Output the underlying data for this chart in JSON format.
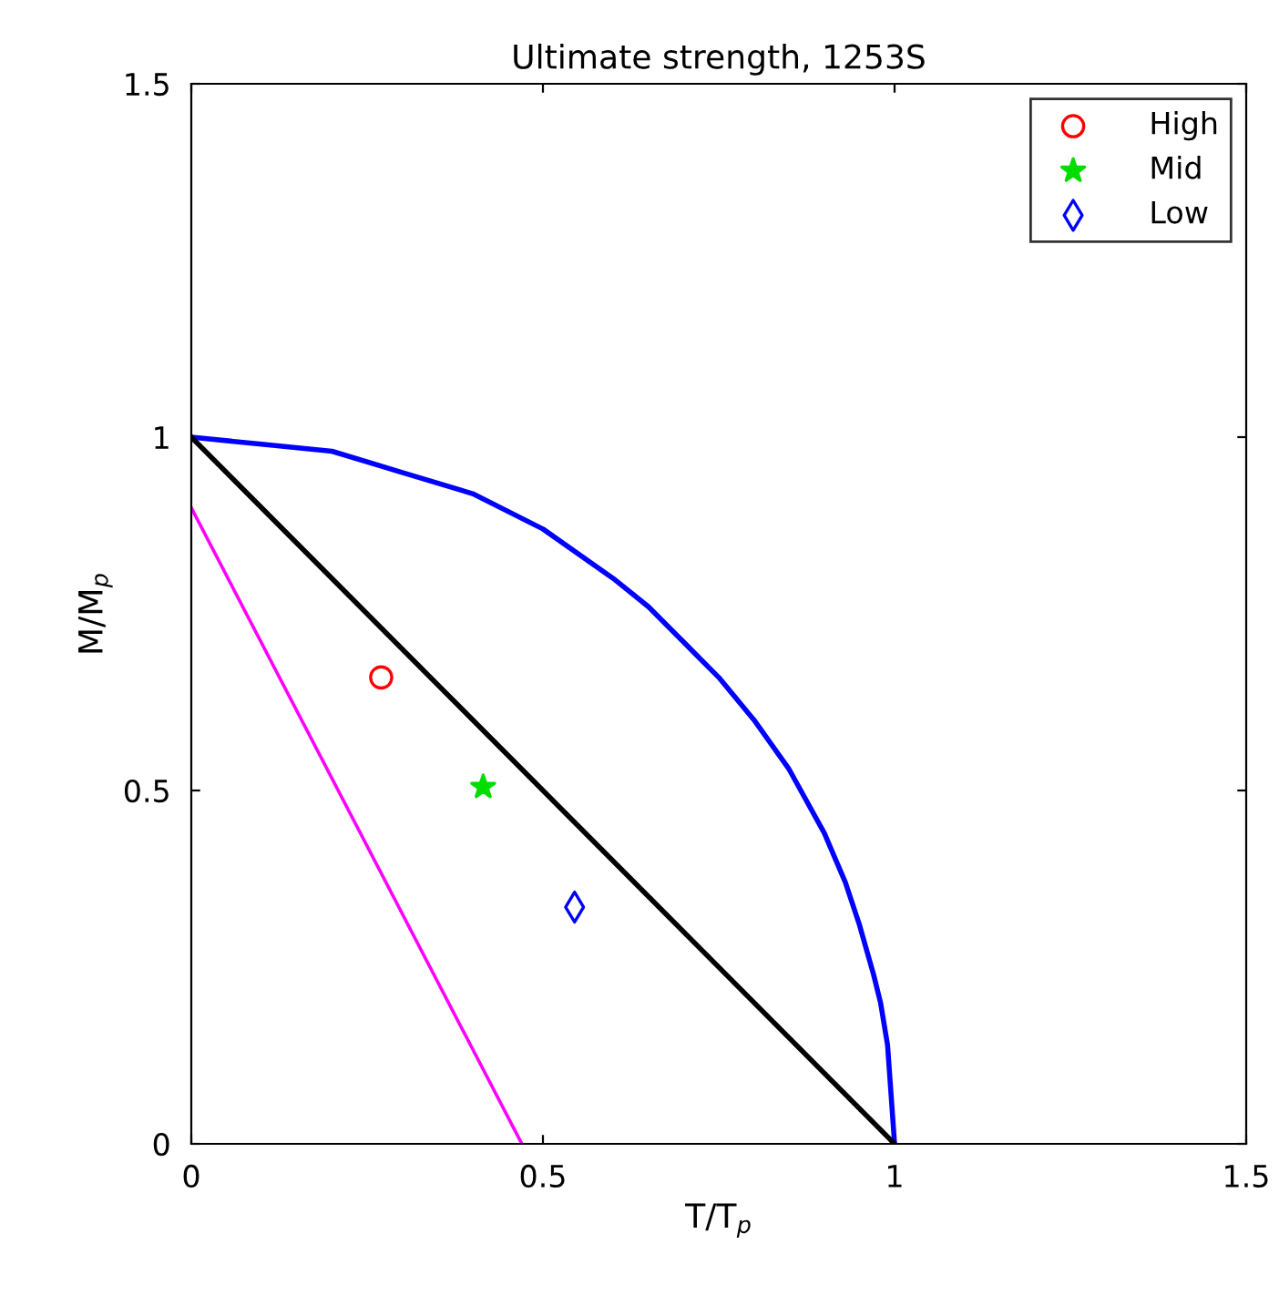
{
  "chart_data": {
    "type": "scatter",
    "title": "Ultimate strength, 1253S",
    "xlabel": "T/T$_{p}$",
    "ylabel": "M/M$_{p}$",
    "xlim": [
      0,
      1.5
    ],
    "ylim": [
      0,
      1.5
    ],
    "xticks": [
      0,
      0.5,
      1,
      1.5
    ],
    "yticks": [
      0,
      0.5,
      1,
      1.5
    ],
    "grid": false,
    "legend": "top right",
    "series": [
      {
        "type": "line",
        "color": "#0000ff",
        "x": [
          0,
          0.1,
          0.2,
          0.3,
          0.4,
          0.5,
          0.6,
          0.65,
          0.7,
          0.75,
          0.8,
          0.85,
          0.9,
          0.93,
          0.95,
          0.97,
          0.98,
          0.99,
          1.0
        ],
        "values": [
          1,
          0.99,
          0.98,
          0.95,
          0.92,
          0.87,
          0.8,
          0.76,
          0.71,
          0.66,
          0.6,
          0.53,
          0.44,
          0.37,
          0.31,
          0.24,
          0.2,
          0.14,
          0
        ]
      },
      {
        "type": "line",
        "color": "#000000",
        "x": [
          0,
          1
        ],
        "values": [
          1,
          0
        ]
      },
      {
        "type": "line",
        "color": "#ff00ff",
        "x": [
          0,
          0.47
        ],
        "values": [
          0.9,
          0
        ]
      },
      {
        "name": "High",
        "color": "#ff0000",
        "marker": "circle",
        "x": [
          0.27
        ],
        "values": [
          0.66
        ]
      },
      {
        "name": "Mid",
        "color": "#00dd00",
        "marker": "star",
        "x": [
          0.415
        ],
        "values": [
          0.505
        ]
      },
      {
        "name": "Low",
        "color": "#0000ff",
        "marker": "diamond",
        "x": [
          0.545
        ],
        "values": [
          0.335
        ]
      }
    ]
  }
}
